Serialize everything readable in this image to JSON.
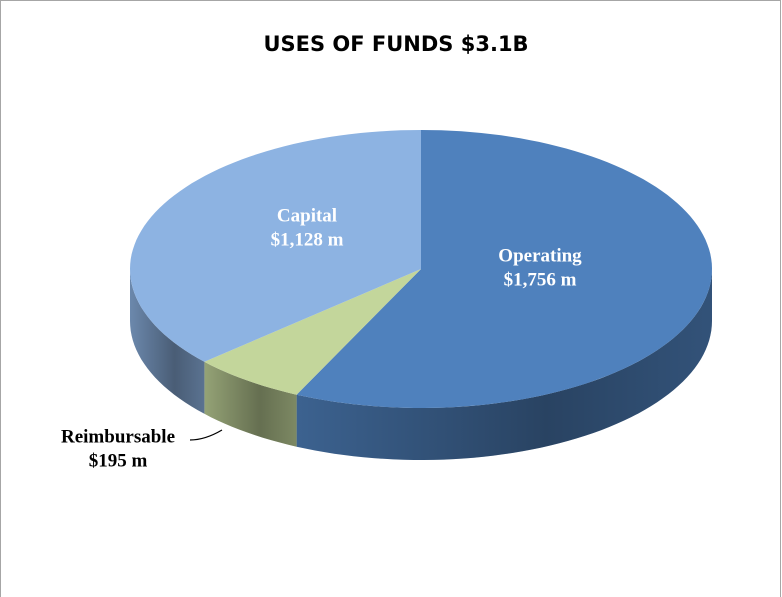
{
  "chart_data": {
    "type": "pie3d",
    "title": "USES OF FUNDS $3.1B",
    "categories": [
      "Operating",
      "Reimbursable",
      "Capital"
    ],
    "values": [
      1756,
      195,
      1128
    ],
    "value_labels": [
      "$1,756 m",
      "$195 m",
      "$1,128 m"
    ],
    "colors": [
      "#4f81bd",
      "#c3d69b",
      "#8db3e2"
    ]
  }
}
